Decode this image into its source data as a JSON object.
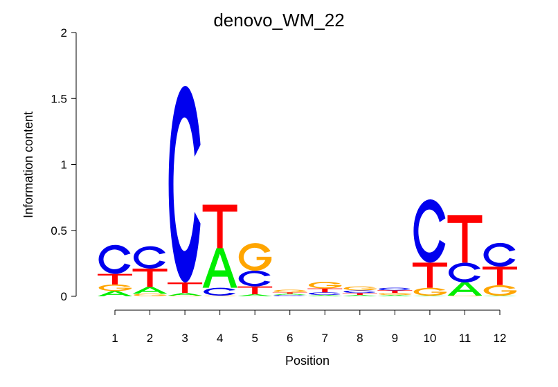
{
  "chart_data": {
    "type": "sequence-logo",
    "title": "denovo_WM_22",
    "xlabel": "Position",
    "ylabel": "Information content",
    "ylim": [
      0,
      2
    ],
    "yticks": [
      "0",
      "0.5",
      "1",
      "1.5",
      "2"
    ],
    "categories": [
      "1",
      "2",
      "3",
      "4",
      "5",
      "6",
      "7",
      "8",
      "9",
      "10",
      "11",
      "12"
    ],
    "colors": {
      "A": "#00ee00",
      "C": "#0000ee",
      "G": "#ffa500",
      "T": "#ff0000"
    },
    "columns": [
      [
        [
          "A",
          0.04
        ],
        [
          "G",
          0.05
        ],
        [
          "T",
          0.08
        ],
        [
          "C",
          0.22
        ]
      ],
      [
        [
          "G",
          0.02
        ],
        [
          "A",
          0.05
        ],
        [
          "T",
          0.14
        ],
        [
          "C",
          0.17
        ]
      ],
      [
        [
          "G",
          0.005
        ],
        [
          "A",
          0.02
        ],
        [
          "T",
          0.08
        ],
        [
          "C",
          1.49
        ]
      ],
      [
        [
          "G",
          0.005
        ],
        [
          "C",
          0.06
        ],
        [
          "A",
          0.3
        ],
        [
          "T",
          0.33
        ]
      ],
      [
        [
          "A",
          0.015
        ],
        [
          "T",
          0.06
        ],
        [
          "C",
          0.12
        ],
        [
          "G",
          0.21
        ]
      ],
      [
        [
          "C",
          0.01
        ],
        [
          "A",
          0.01
        ],
        [
          "T",
          0.01
        ],
        [
          "G",
          0.02
        ]
      ],
      [
        [
          "A",
          0.01
        ],
        [
          "C",
          0.02
        ],
        [
          "T",
          0.03
        ],
        [
          "G",
          0.05
        ]
      ],
      [
        [
          "A",
          0.01
        ],
        [
          "T",
          0.015
        ],
        [
          "C",
          0.02
        ],
        [
          "G",
          0.03
        ]
      ],
      [
        [
          "A",
          0.01
        ],
        [
          "G",
          0.015
        ],
        [
          "T",
          0.02
        ],
        [
          "C",
          0.02
        ]
      ],
      [
        [
          "A",
          0.005
        ],
        [
          "G",
          0.06
        ],
        [
          "T",
          0.19
        ],
        [
          "C",
          0.48
        ]
      ],
      [
        [
          "G",
          0.005
        ],
        [
          "A",
          0.1
        ],
        [
          "C",
          0.15
        ],
        [
          "T",
          0.36
        ]
      ],
      [
        [
          "A",
          0.005
        ],
        [
          "G",
          0.08
        ],
        [
          "T",
          0.14
        ],
        [
          "C",
          0.18
        ]
      ]
    ]
  }
}
